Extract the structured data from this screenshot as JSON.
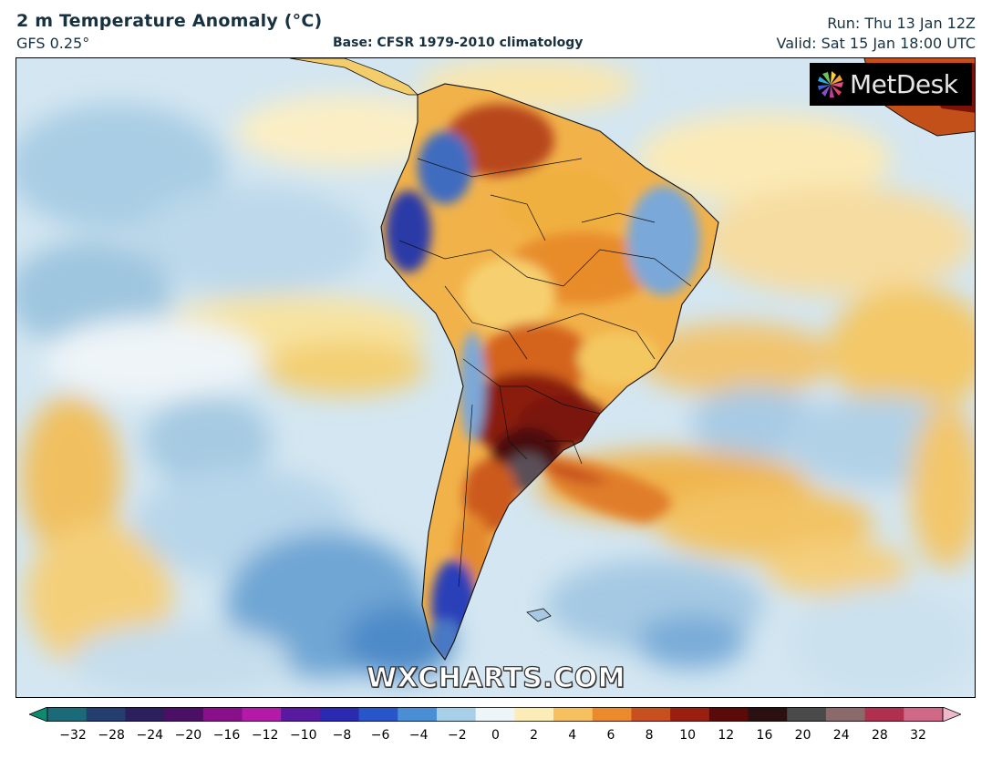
{
  "header": {
    "title": "2 m Temperature Anomaly (°C)",
    "model": "GFS 0.25°",
    "base": "Base: CFSR 1979-2010 climatology",
    "run": "Run: Thu 13 Jan 12Z",
    "valid": "Valid: Sat 15 Jan 18:00 UTC"
  },
  "logo": {
    "text": "MetDesk"
  },
  "watermark": {
    "text": "WXCHARTS.COM"
  },
  "colorbar": {
    "tick_labels": [
      "−32",
      "−28",
      "−24",
      "−20",
      "−16",
      "−12",
      "−10",
      "−8",
      "−6",
      "−4",
      "−2",
      "0",
      "2",
      "4",
      "6",
      "8",
      "10",
      "12",
      "16",
      "20",
      "24",
      "28",
      "32"
    ],
    "colors": [
      "#0f8a6e",
      "#1a6a7a",
      "#243e6e",
      "#2b1f5c",
      "#4c0f66",
      "#8a0f8a",
      "#b41aa8",
      "#5a1aa0",
      "#2a2ab0",
      "#2855c8",
      "#4a8fd6",
      "#a8cfe8",
      "#eef5f9",
      "#fbecb8",
      "#f5c060",
      "#ea8a2a",
      "#c8501e",
      "#9a1f10",
      "#5a0a08",
      "#2a1010",
      "#4a4a4a",
      "#8a6a6a",
      "#b03050",
      "#d06888",
      "#f0b8cc"
    ]
  },
  "map": {
    "region": "South America",
    "accent_colors": {
      "ocean_cool": "#cfe4ef",
      "warm_anomaly": "#f2b84a",
      "strong_warm": "#8a1f10",
      "cold_anomaly": "#2855c8"
    }
  }
}
